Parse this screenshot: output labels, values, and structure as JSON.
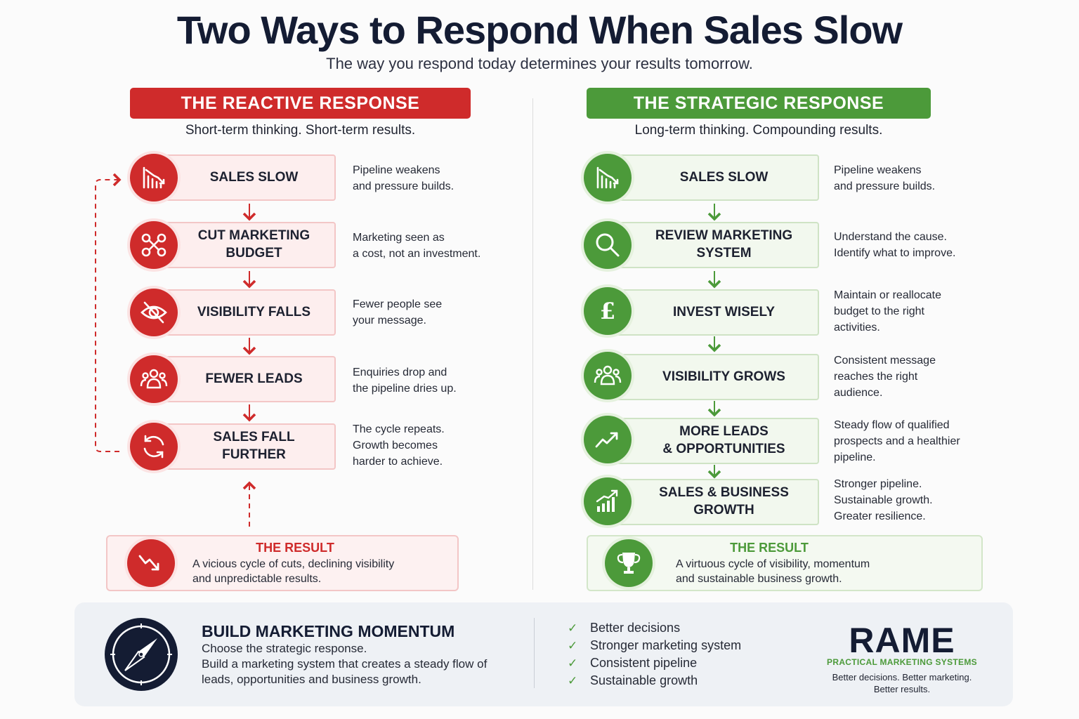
{
  "title": "Two Ways to Respond When Sales Slow",
  "subtitle": "The way you respond today determines your results tomorrow.",
  "colors": {
    "reactive": "#cf2b2b",
    "strategic": "#4c9a3a",
    "navy": "#141c33"
  },
  "reactive": {
    "heading": "THE REACTIVE RESPONSE",
    "tagline": "Short-term thinking. Short-term results.",
    "steps": [
      {
        "icon": "declining-bar-chart-icon",
        "label": "SALES SLOW",
        "desc": [
          "Pipeline weakens",
          "and pressure builds."
        ]
      },
      {
        "icon": "scissors-icon",
        "label": [
          "CUT MARKETING",
          "BUDGET"
        ],
        "desc": [
          "Marketing seen as",
          "a cost, not an investment."
        ]
      },
      {
        "icon": "eye-slash-icon",
        "label": "VISIBILITY FALLS",
        "desc": [
          "Fewer people see",
          "your message."
        ]
      },
      {
        "icon": "people-group-icon",
        "label": "FEWER LEADS",
        "desc": [
          "Enquiries drop and",
          "the pipeline dries up."
        ]
      },
      {
        "icon": "cycle-arrows-icon",
        "label": "SALES FALL FURTHER",
        "desc": [
          "The cycle repeats.",
          "Growth becomes",
          "harder to achieve."
        ]
      }
    ],
    "result": {
      "icon": "trend-down-icon",
      "title": "THE RESULT",
      "text": [
        "A vicious cycle of cuts, declining visibility",
        "and unpredictable results."
      ]
    }
  },
  "strategic": {
    "heading": "THE STRATEGIC RESPONSE",
    "tagline": "Long-term thinking. Compounding results.",
    "steps": [
      {
        "icon": "declining-bar-chart-icon",
        "label": "SALES SLOW",
        "desc": [
          "Pipeline weakens",
          "and pressure builds."
        ]
      },
      {
        "icon": "magnifier-icon",
        "label": [
          "REVIEW MARKETING",
          "SYSTEM"
        ],
        "desc": [
          "Understand the cause.",
          "Identify what to improve."
        ]
      },
      {
        "icon": "pound-sign-icon",
        "label": "INVEST WISELY",
        "desc": [
          "Maintain or reallocate",
          "budget to the right",
          "activities."
        ]
      },
      {
        "icon": "people-group-icon",
        "label": "VISIBILITY GROWS",
        "desc": [
          "Consistent message",
          "reaches the right",
          "audience."
        ]
      },
      {
        "icon": "trend-up-icon",
        "label": [
          "MORE LEADS",
          "& OPPORTUNITIES"
        ],
        "desc": [
          "Steady flow of qualified",
          "prospects and a healthier",
          "pipeline."
        ]
      },
      {
        "icon": "growth-bar-chart-icon",
        "label": [
          "SALES & BUSINESS",
          "GROWTH"
        ],
        "desc": [
          "Stronger pipeline.",
          "Sustainable growth.",
          "Greater resilience."
        ]
      }
    ],
    "result": {
      "icon": "trophy-icon",
      "title": "THE RESULT",
      "text": [
        "A virtuous cycle of visibility, momentum",
        "and sustainable business growth."
      ]
    }
  },
  "bottom": {
    "icon": "compass-icon",
    "title": "BUILD MARKETING MOMENTUM",
    "lines": [
      "Choose the strategic response.",
      "Build a marketing system that creates a steady flow of",
      "leads, opportunities and business growth."
    ],
    "checklist": [
      "Better decisions",
      "Stronger marketing system",
      "Consistent pipeline",
      "Sustainable growth"
    ],
    "logo": {
      "name": "RAME",
      "sub": "PRACTICAL MARKETING SYSTEMS",
      "tagline": [
        "Better decisions. Better marketing.",
        "Better results."
      ]
    }
  }
}
